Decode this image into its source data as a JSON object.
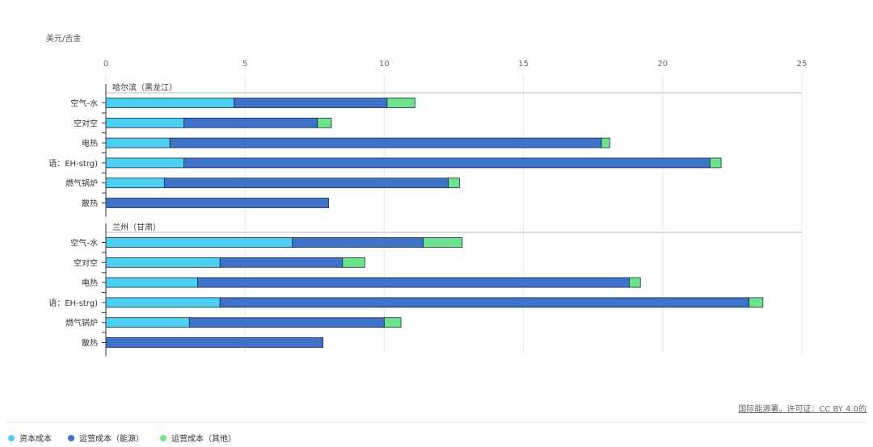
{
  "chart_data": {
    "type": "bar",
    "orientation": "horizontal",
    "stacked": true,
    "unit_label": "美元/吉金",
    "xlim": [
      0,
      25
    ],
    "xticks": [
      0,
      5,
      10,
      15,
      20,
      25
    ],
    "grid": true,
    "legend_position": "bottom-left",
    "groups": [
      {
        "title": "哈尔滨（黑龙江）",
        "categories": [
          "空气-水",
          "空对空",
          "电热",
          "语：EH-strg)",
          "燃气锅炉",
          "散热"
        ],
        "series": [
          {
            "name": "资本成本",
            "color": "#4dcff2",
            "values": [
              4.6,
              2.8,
              2.3,
              2.8,
              2.1,
              0
            ]
          },
          {
            "name": "运营成本（能源）",
            "color": "#3d72c8",
            "values": [
              5.5,
              4.8,
              15.5,
              18.9,
              10.2,
              8.0
            ]
          },
          {
            "name": "运营成本（其他）",
            "color": "#6ee38e",
            "values": [
              1.0,
              0.5,
              0.3,
              0.4,
              0.4,
              0
            ]
          }
        ]
      },
      {
        "title": "兰州（甘肃）",
        "categories": [
          "空气-水",
          "空对空",
          "电热",
          "语：EH-strg)",
          "燃气锅炉",
          "散热"
        ],
        "series": [
          {
            "name": "资本成本",
            "color": "#4dcff2",
            "values": [
              6.7,
              4.1,
              3.3,
              4.1,
              3.0,
              0
            ]
          },
          {
            "name": "运营成本（能源）",
            "color": "#3d72c8",
            "values": [
              4.7,
              4.4,
              15.5,
              19.0,
              7.0,
              7.8
            ]
          },
          {
            "name": "运营成本（其他）",
            "color": "#6ee38e",
            "values": [
              1.4,
              0.8,
              0.4,
              0.5,
              0.6,
              0
            ]
          }
        ]
      }
    ]
  },
  "source_text": "国际能源署。许可证：CC BY 4.0的",
  "legend": [
    {
      "label": "资本成本",
      "color": "#4dcff2"
    },
    {
      "label": "运营成本（能源）",
      "color": "#3d72c8"
    },
    {
      "label": "运营成本（其他）",
      "color": "#6ee38e"
    }
  ]
}
